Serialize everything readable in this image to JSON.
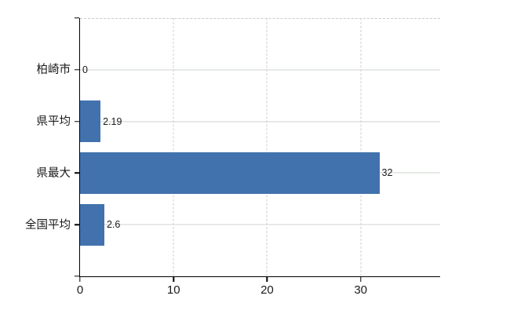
{
  "chart_data": {
    "type": "bar",
    "orientation": "horizontal",
    "title": "",
    "xlabel": "",
    "ylabel": "",
    "categories": [
      "柏崎市",
      "県平均",
      "県最大",
      "全国平均"
    ],
    "values": [
      0,
      2.19,
      32,
      2.6
    ],
    "value_labels": [
      "0",
      "2.19",
      "32",
      "2.6"
    ],
    "x_ticks": [
      0,
      10,
      20,
      30
    ],
    "xlim": [
      0,
      38.5
    ],
    "grid": true,
    "legend_position": "none",
    "bar_color": "#4272ad",
    "axis_color": "#000000",
    "text_color": "#1a1a1a",
    "h_gridline_color": "#ccd4cc",
    "v_gridline_color": "#d5cbd2",
    "top_border_color": "#d1c9cd",
    "background_color": "#ffffff"
  }
}
